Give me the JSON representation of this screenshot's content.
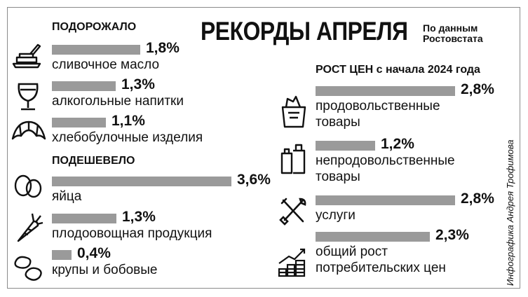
{
  "title": "РЕКОРДЫ АПРЕЛЯ",
  "source": [
    "По данным",
    "Ростовстата"
  ],
  "credit": "Инфографика Андрея Трофимова",
  "chart_data": [
    {
      "type": "bar",
      "title": "ПОДОРОЖАЛО",
      "categories": [
        "сливочное масло",
        "алкогольные напитки",
        "хлебобулочные изделия"
      ],
      "values": [
        1.8,
        1.3,
        1.1
      ],
      "value_labels": [
        "1,8%",
        "1,3%",
        "1,1%"
      ],
      "icons": [
        "butter-dish-icon",
        "wine-glass-icon",
        "croissant-icon"
      ]
    },
    {
      "type": "bar",
      "title": "ПОДЕШЕВЕЛО",
      "categories": [
        "яйца",
        "плодоовощная продукция",
        "крупы и бобовые"
      ],
      "values": [
        3.6,
        1.3,
        0.4
      ],
      "value_labels": [
        "3,6%",
        "1,3%",
        "0,4%"
      ],
      "icons": [
        "eggs-icon",
        "carrot-icon",
        "beans-icon"
      ]
    },
    {
      "type": "bar",
      "title": "РОСТ ЦЕН с начала 2024 года",
      "categories": [
        [
          "продовольственные",
          "товары"
        ],
        [
          "непродовольственные",
          "товары"
        ],
        [
          "услуги"
        ],
        [
          "общий рост",
          "потребительских цен"
        ]
      ],
      "values": [
        2.8,
        1.2,
        2.8,
        2.3
      ],
      "value_labels": [
        "2,8%",
        "1,2%",
        "2,8%",
        "2,3%"
      ],
      "icons": [
        "grocery-bag-icon",
        "household-goods-icon",
        "tools-icon",
        "coins-growth-icon"
      ]
    }
  ]
}
